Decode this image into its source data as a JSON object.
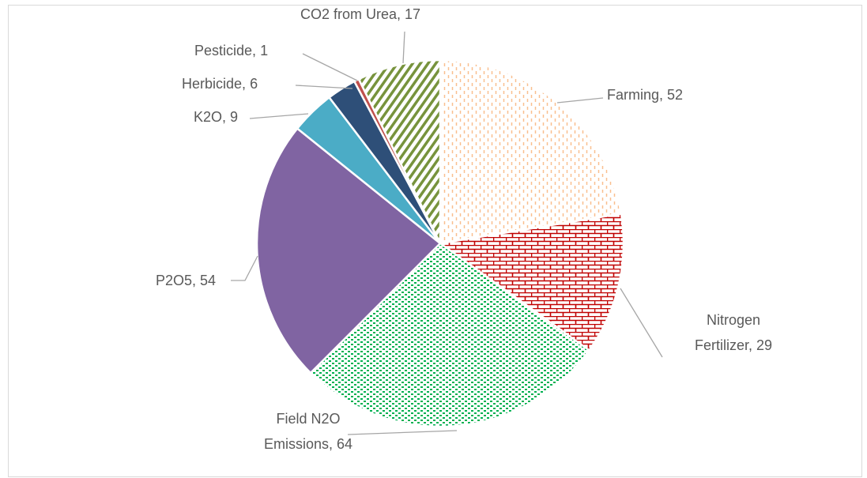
{
  "chart_data": {
    "type": "pie",
    "categories": [
      "Farming",
      "Nitrogen Fertilizer",
      "Field N2O Emissions",
      "P2O5",
      "K2O",
      "Herbicide",
      "Pesticide",
      "CO2 from Urea"
    ],
    "values": [
      52,
      29,
      64,
      54,
      9,
      6,
      1,
      17
    ],
    "colors": [
      "#f9bf8f",
      "#c00000",
      "#00b050",
      "#8064a2",
      "#4bacc6",
      "#2e4f78",
      "#c0504d",
      "#77933c"
    ],
    "patterns": [
      "dashed-vertical",
      "brick",
      "dots",
      "solid",
      "solid",
      "solid",
      "solid",
      "diagonal"
    ]
  }
}
